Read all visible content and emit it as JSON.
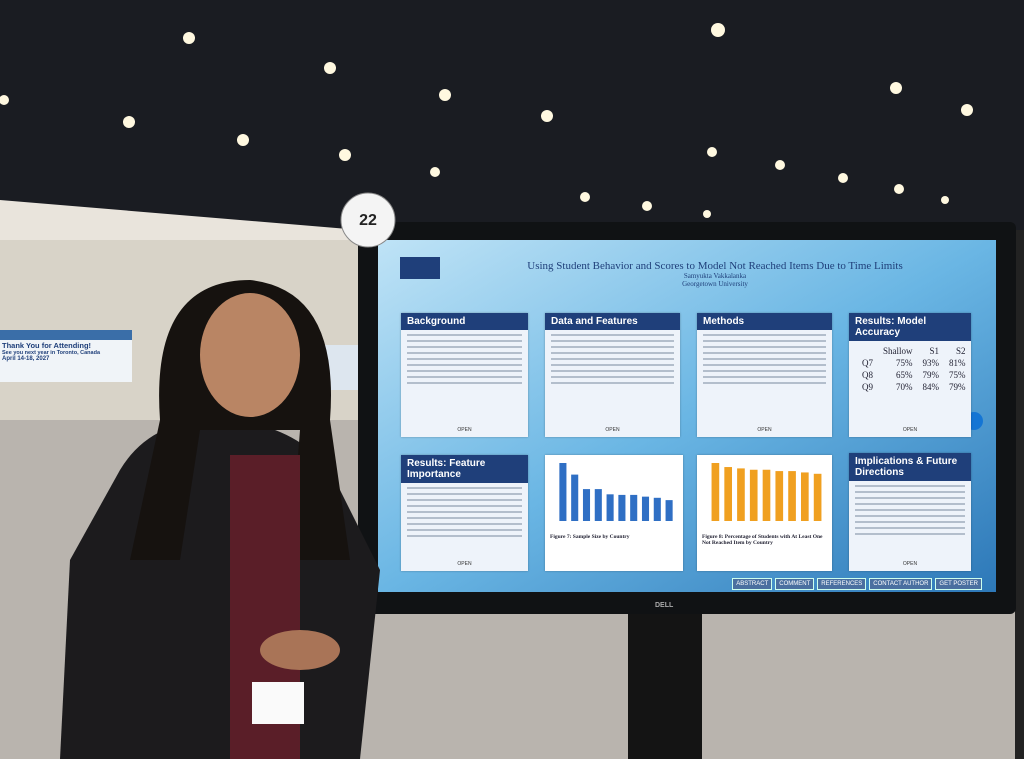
{
  "booth_number": "22",
  "banner": {
    "title": "Thank You for Attending!",
    "subtitle": "See you next year in Toronto, Canada",
    "dates": "April 14-18, 2027"
  },
  "poster": {
    "title": "Using Student Behavior and Scores to Model Not Reached Items Due to Time Limits",
    "author": "Samyukta Vakkalanka",
    "affiliation": "Georgetown University",
    "open_label": "OPEN",
    "sections": [
      {
        "heading": "Background"
      },
      {
        "heading": "Data and Features"
      },
      {
        "heading": "Methods"
      },
      {
        "heading": "Results: Model Accuracy",
        "table": {
          "columns": [
            "Shallow",
            "S1",
            "S2"
          ],
          "rows": [
            [
              "Q7",
              "75%",
              "93%",
              "81%"
            ],
            [
              "Q8",
              "65%",
              "79%",
              "75%"
            ],
            [
              "Q9",
              "70%",
              "84%",
              "79%"
            ]
          ]
        }
      },
      {
        "heading": "Results: Feature Importance"
      },
      {
        "heading": "Implications & Future Directions"
      }
    ],
    "figures": [
      {
        "caption": "Figure 7: Sample Size by Country",
        "color": "#2f6fc4",
        "values": [
          100,
          80,
          55,
          55,
          46,
          45,
          45,
          42,
          40,
          36
        ]
      },
      {
        "caption": "Figure 8: Percentage of Students with At Least One Not Reached Item by Country",
        "color": "#f0a020",
        "values": [
          86,
          80,
          78,
          76,
          76,
          74,
          74,
          72,
          70
        ]
      }
    ],
    "buttons": [
      "ABSTRACT",
      "COMMENT",
      "REFERENCES",
      "CONTACT AUTHOR",
      "GET POSTER"
    ]
  },
  "monitor_brand": "DELL"
}
